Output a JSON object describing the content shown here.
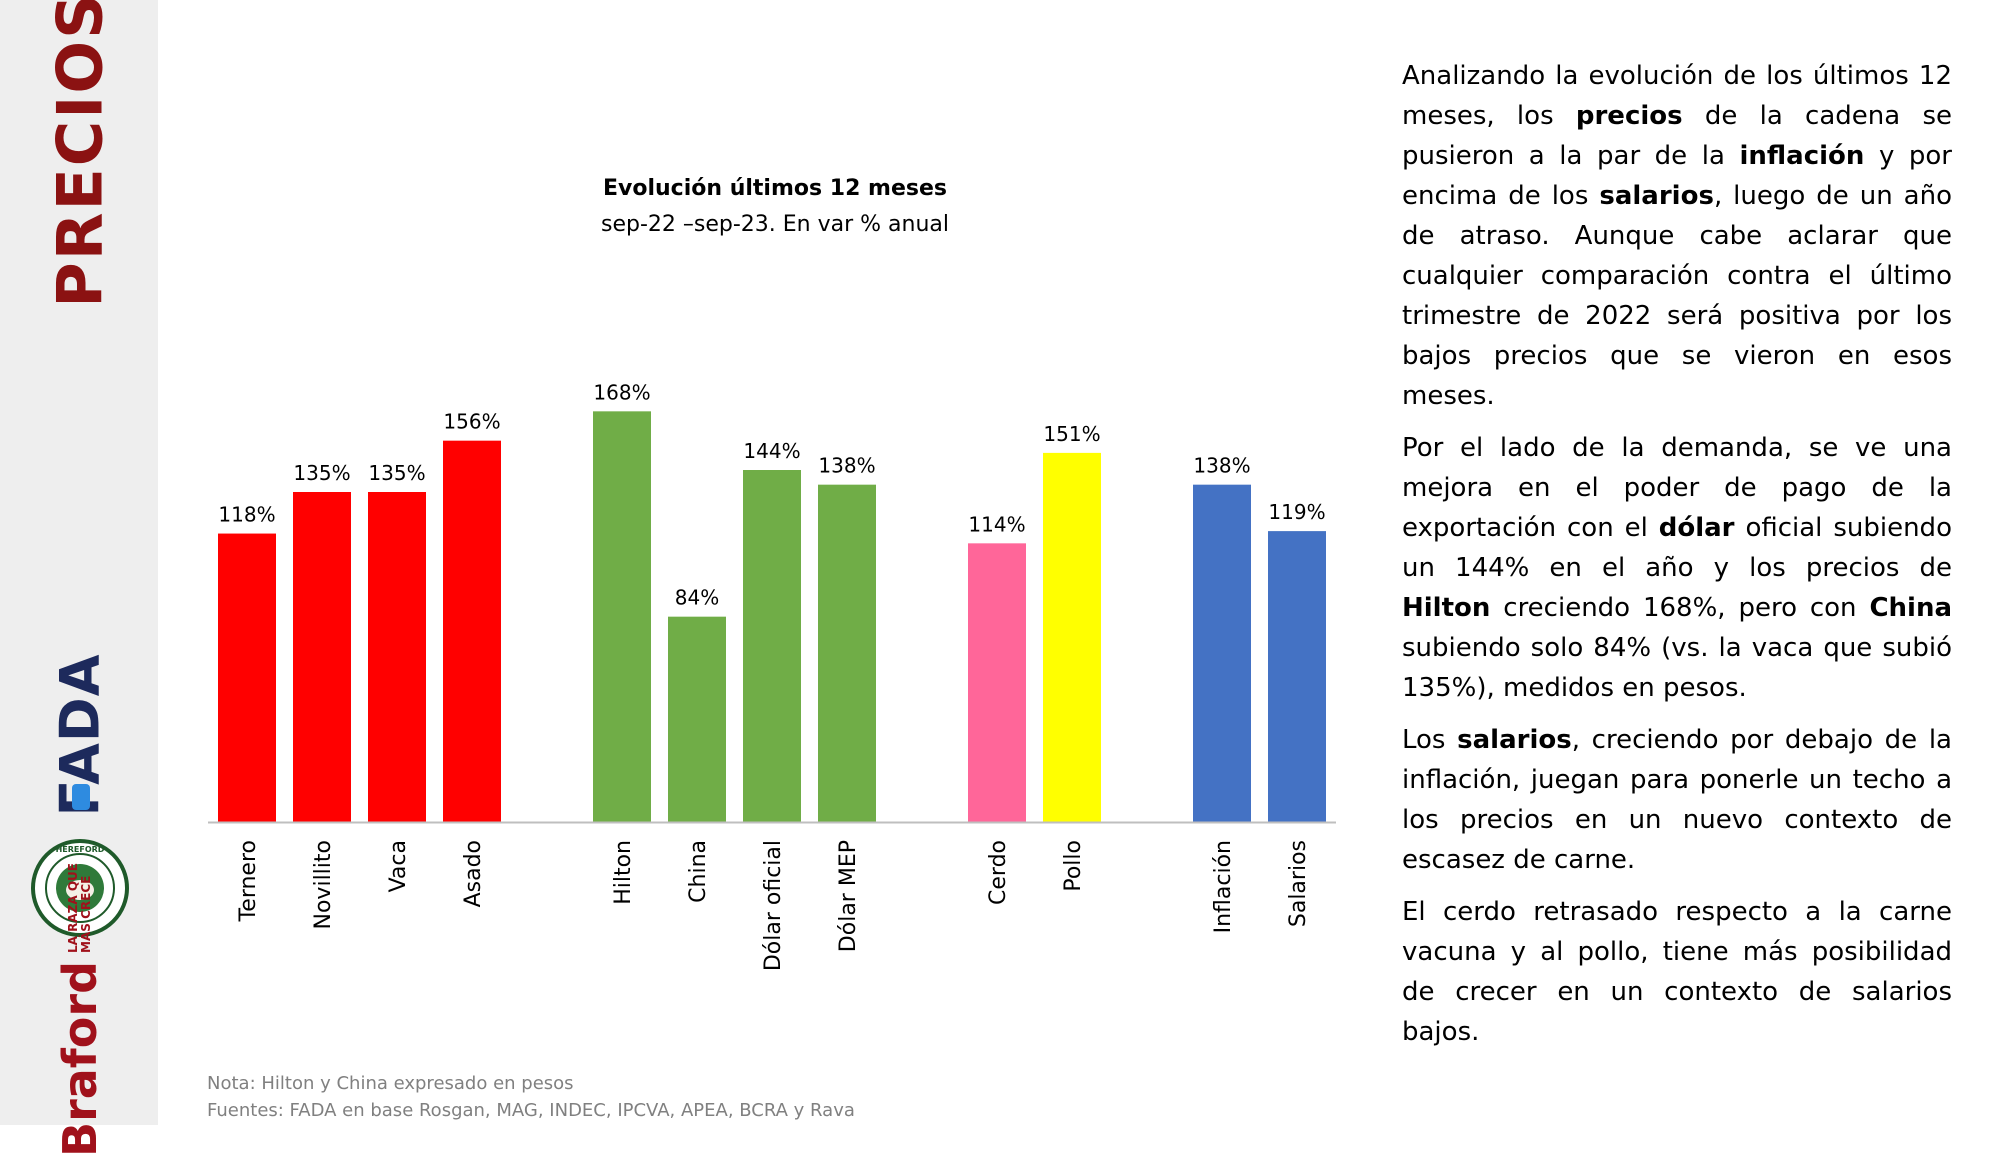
{
  "sidebar": {
    "title": "PRECIOS",
    "logos": {
      "fada": "FADA",
      "hereford": "HEREFORD",
      "braford": "Braford",
      "braford_slogan_line1": "LA RAZA QUE",
      "braford_slogan_line2": "MÁS CRECE"
    }
  },
  "chart_data": {
    "type": "bar",
    "title": "Evolución últimos 12 meses",
    "subtitle": "sep-22 –sep-23. En var % anual",
    "xlabel": "",
    "ylabel": "",
    "ylim": [
      0,
      180
    ],
    "grid": false,
    "legend": "none",
    "groups": [
      {
        "color": "#ff0000",
        "bars": [
          {
            "category": "Ternero",
            "value": 118,
            "label": "118%"
          },
          {
            "category": "Novillito",
            "value": 135,
            "label": "135%"
          },
          {
            "category": "Vaca",
            "value": 135,
            "label": "135%"
          },
          {
            "category": "Asado",
            "value": 156,
            "label": "156%"
          }
        ]
      },
      {
        "color": "#70ad47",
        "bars": [
          {
            "category": "Hilton",
            "value": 168,
            "label": "168%"
          },
          {
            "category": "China",
            "value": 84,
            "label": "84%"
          },
          {
            "category": "Dólar oficial",
            "value": 144,
            "label": "144%"
          },
          {
            "category": "Dólar MEP",
            "value": 138,
            "label": "138%"
          }
        ]
      },
      {
        "color": "#ff6699",
        "bars": [
          {
            "category": "Cerdo",
            "value": 114,
            "label": "114%",
            "color": "#ff6699"
          },
          {
            "category": "Pollo",
            "value": 151,
            "label": "151%",
            "color": "#ffff00"
          }
        ]
      },
      {
        "color": "#4472c4",
        "bars": [
          {
            "category": "Inflación",
            "value": 138,
            "label": "138%"
          },
          {
            "category": "Salarios",
            "value": 119,
            "label": "119%"
          }
        ]
      }
    ]
  },
  "notes": {
    "line1": "Nota: Hilton y China expresado en pesos",
    "line2": "Fuentes: FADA en base Rosgan, MAG, INDEC, IPCVA, APEA, BCRA y Rava"
  },
  "commentary": {
    "p1": [
      {
        "text": "Analizando la evolución de los últimos 12 meses, los "
      },
      {
        "text": "precios",
        "bold": true
      },
      {
        "text": " de la cadena se pusieron a la par de la "
      },
      {
        "text": "inflación",
        "bold": true
      },
      {
        "text": " y por encima de los "
      },
      {
        "text": "salarios",
        "bold": true
      },
      {
        "text": ", luego de un año de atraso. Aunque cabe aclarar que cualquier comparación contra el último trimestre de 2022 será positiva por los bajos precios que se vieron en esos meses."
      }
    ],
    "p2": [
      {
        "text": "Por el lado de la demanda, se ve una mejora en el poder de pago de la exportación con el "
      },
      {
        "text": "dólar",
        "bold": true
      },
      {
        "text": " oficial subiendo un 144% en el año y los precios de "
      },
      {
        "text": "Hilton",
        "bold": true
      },
      {
        "text": " creciendo 168%, pero con "
      },
      {
        "text": "China",
        "bold": true
      },
      {
        "text": " subiendo solo 84% (vs. la vaca que subió 135%), medidos en pesos."
      }
    ],
    "p3": [
      {
        "text": "Los "
      },
      {
        "text": "salarios",
        "bold": true
      },
      {
        "text": ", creciendo por debajo de la inflación, juegan para ponerle un techo a los precios en un nuevo contexto de escasez de carne."
      }
    ],
    "p4": [
      {
        "text": "El cerdo retrasado respecto a la carne vacuna y al pollo, tiene más posibilidad de crecer en un contexto de salarios bajos."
      }
    ]
  }
}
